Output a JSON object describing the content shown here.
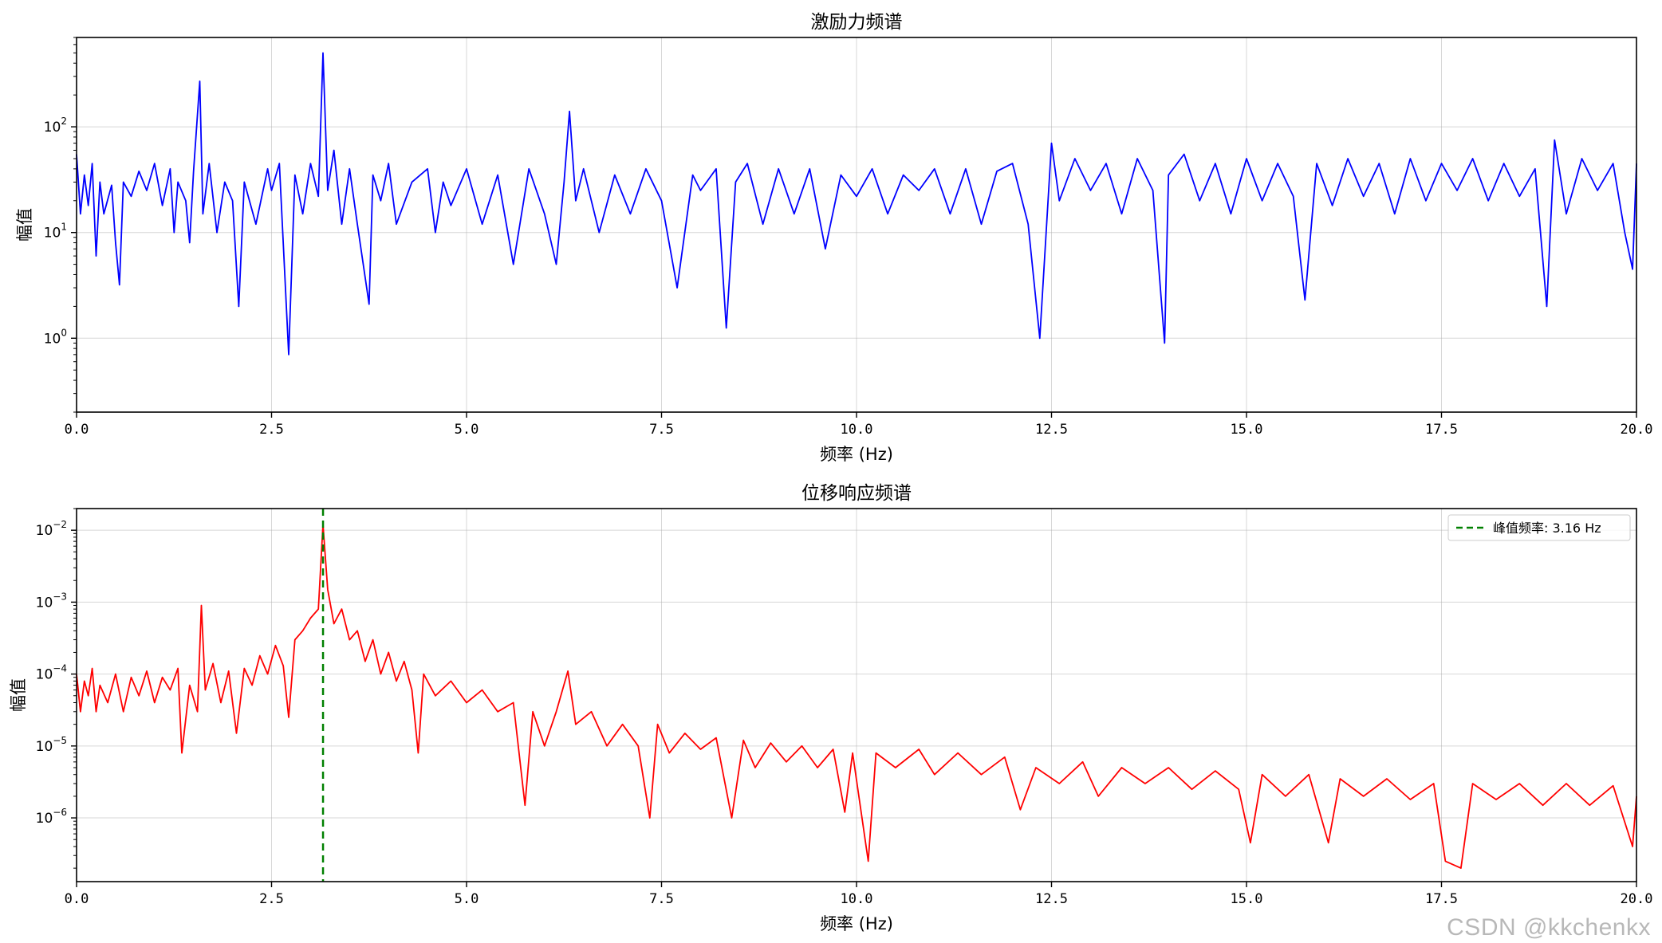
{
  "watermark": "CSDN @kkchenkx",
  "chart_data": [
    {
      "type": "line",
      "title": "激励力频谱",
      "xlabel": "频率 (Hz)",
      "ylabel": "幅值",
      "xlim": [
        0,
        20
      ],
      "ylim": [
        0.2,
        700
      ],
      "yscale": "log",
      "grid": true,
      "x_ticks": [
        "0.0",
        "2.5",
        "5.0",
        "7.5",
        "10.0",
        "12.5",
        "15.0",
        "17.5",
        "20.0"
      ],
      "y_ticks": [
        {
          "value": 1,
          "base": "10",
          "exp": "0"
        },
        {
          "value": 10,
          "base": "10",
          "exp": "1"
        },
        {
          "value": 100,
          "base": "10",
          "exp": "2"
        }
      ],
      "color": "#0000ff",
      "series": [
        {
          "name": "",
          "points": [
            [
              0,
              55
            ],
            [
              0.05,
              15
            ],
            [
              0.1,
              35
            ],
            [
              0.15,
              18
            ],
            [
              0.2,
              45
            ],
            [
              0.25,
              6
            ],
            [
              0.3,
              30
            ],
            [
              0.35,
              15
            ],
            [
              0.45,
              28
            ],
            [
              0.5,
              8
            ],
            [
              0.55,
              3.2
            ],
            [
              0.6,
              30
            ],
            [
              0.7,
              22
            ],
            [
              0.8,
              38
            ],
            [
              0.9,
              25
            ],
            [
              1.0,
              45
            ],
            [
              1.1,
              18
            ],
            [
              1.2,
              40
            ],
            [
              1.25,
              10
            ],
            [
              1.3,
              30
            ],
            [
              1.4,
              20
            ],
            [
              1.45,
              8
            ],
            [
              1.5,
              38
            ],
            [
              1.58,
              270
            ],
            [
              1.62,
              15
            ],
            [
              1.7,
              45
            ],
            [
              1.8,
              10
            ],
            [
              1.9,
              30
            ],
            [
              2.0,
              20
            ],
            [
              2.08,
              2.0
            ],
            [
              2.15,
              30
            ],
            [
              2.3,
              12
            ],
            [
              2.45,
              40
            ],
            [
              2.5,
              25
            ],
            [
              2.6,
              45
            ],
            [
              2.72,
              0.7
            ],
            [
              2.8,
              35
            ],
            [
              2.9,
              15
            ],
            [
              3.0,
              45
            ],
            [
              3.1,
              22
            ],
            [
              3.16,
              500
            ],
            [
              3.22,
              25
            ],
            [
              3.3,
              60
            ],
            [
              3.4,
              12
            ],
            [
              3.5,
              40
            ],
            [
              3.6,
              12
            ],
            [
              3.75,
              2.1
            ],
            [
              3.8,
              35
            ],
            [
              3.9,
              20
            ],
            [
              4.0,
              45
            ],
            [
              4.1,
              12
            ],
            [
              4.3,
              30
            ],
            [
              4.5,
              40
            ],
            [
              4.6,
              10
            ],
            [
              4.7,
              30
            ],
            [
              4.8,
              18
            ],
            [
              5.0,
              40
            ],
            [
              5.2,
              12
            ],
            [
              5.4,
              35
            ],
            [
              5.6,
              5
            ],
            [
              5.8,
              40
            ],
            [
              6.0,
              15
            ],
            [
              6.15,
              5
            ],
            [
              6.25,
              30
            ],
            [
              6.32,
              140
            ],
            [
              6.4,
              20
            ],
            [
              6.5,
              40
            ],
            [
              6.7,
              10
            ],
            [
              6.9,
              35
            ],
            [
              7.1,
              15
            ],
            [
              7.3,
              40
            ],
            [
              7.5,
              20
            ],
            [
              7.7,
              3.0
            ],
            [
              7.9,
              35
            ],
            [
              8.0,
              25
            ],
            [
              8.2,
              40
            ],
            [
              8.33,
              1.25
            ],
            [
              8.45,
              30
            ],
            [
              8.6,
              45
            ],
            [
              8.8,
              12
            ],
            [
              9.0,
              40
            ],
            [
              9.2,
              15
            ],
            [
              9.4,
              40
            ],
            [
              9.6,
              7
            ],
            [
              9.8,
              35
            ],
            [
              10.0,
              22
            ],
            [
              10.2,
              40
            ],
            [
              10.4,
              15
            ],
            [
              10.6,
              35
            ],
            [
              10.8,
              25
            ],
            [
              11.0,
              40
            ],
            [
              11.2,
              15
            ],
            [
              11.4,
              40
            ],
            [
              11.6,
              12
            ],
            [
              11.8,
              38
            ],
            [
              12.0,
              45
            ],
            [
              12.2,
              12
            ],
            [
              12.35,
              1.0
            ],
            [
              12.5,
              70
            ],
            [
              12.6,
              20
            ],
            [
              12.8,
              50
            ],
            [
              13.0,
              25
            ],
            [
              13.2,
              45
            ],
            [
              13.4,
              15
            ],
            [
              13.6,
              50
            ],
            [
              13.8,
              25
            ],
            [
              13.95,
              0.9
            ],
            [
              14.0,
              35
            ],
            [
              14.2,
              55
            ],
            [
              14.4,
              20
            ],
            [
              14.6,
              45
            ],
            [
              14.8,
              15
            ],
            [
              15.0,
              50
            ],
            [
              15.2,
              20
            ],
            [
              15.4,
              45
            ],
            [
              15.6,
              22
            ],
            [
              15.75,
              2.3
            ],
            [
              15.9,
              45
            ],
            [
              16.1,
              18
            ],
            [
              16.3,
              50
            ],
            [
              16.5,
              22
            ],
            [
              16.7,
              45
            ],
            [
              16.9,
              15
            ],
            [
              17.1,
              50
            ],
            [
              17.3,
              20
            ],
            [
              17.5,
              45
            ],
            [
              17.7,
              25
            ],
            [
              17.9,
              50
            ],
            [
              18.1,
              20
            ],
            [
              18.3,
              45
            ],
            [
              18.5,
              22
            ],
            [
              18.7,
              40
            ],
            [
              18.85,
              2.0
            ],
            [
              18.95,
              75
            ],
            [
              19.1,
              15
            ],
            [
              19.3,
              50
            ],
            [
              19.5,
              25
            ],
            [
              19.7,
              45
            ],
            [
              19.85,
              10
            ],
            [
              19.95,
              4.5
            ],
            [
              20.0,
              45
            ]
          ]
        }
      ]
    },
    {
      "type": "line",
      "title": "位移响应频谱",
      "xlabel": "频率 (Hz)",
      "ylabel": "幅值",
      "xlim": [
        0,
        20
      ],
      "ylim": [
        1.3e-07,
        0.02
      ],
      "yscale": "log",
      "grid": true,
      "x_ticks": [
        "0.0",
        "2.5",
        "5.0",
        "7.5",
        "10.0",
        "12.5",
        "15.0",
        "17.5",
        "20.0"
      ],
      "y_ticks": [
        {
          "value": 1e-06,
          "base": "10",
          "exp": "−6"
        },
        {
          "value": 1e-05,
          "base": "10",
          "exp": "−5"
        },
        {
          "value": 0.0001,
          "base": "10",
          "exp": "−4"
        },
        {
          "value": 0.001,
          "base": "10",
          "exp": "−3"
        },
        {
          "value": 0.01,
          "base": "10",
          "exp": "−2"
        }
      ],
      "color": "#ff0000",
      "series": [
        {
          "name": "",
          "points": [
            [
              0,
              0.0001
            ],
            [
              0.05,
              3e-05
            ],
            [
              0.1,
              8e-05
            ],
            [
              0.15,
              5e-05
            ],
            [
              0.2,
              0.00012
            ],
            [
              0.25,
              3e-05
            ],
            [
              0.3,
              7e-05
            ],
            [
              0.4,
              4e-05
            ],
            [
              0.5,
              0.0001
            ],
            [
              0.6,
              3e-05
            ],
            [
              0.7,
              9e-05
            ],
            [
              0.8,
              5e-05
            ],
            [
              0.9,
              0.00011
            ],
            [
              1.0,
              4e-05
            ],
            [
              1.1,
              9e-05
            ],
            [
              1.2,
              6e-05
            ],
            [
              1.3,
              0.00012
            ],
            [
              1.35,
              8e-06
            ],
            [
              1.45,
              7e-05
            ],
            [
              1.55,
              3e-05
            ],
            [
              1.6,
              0.0009
            ],
            [
              1.65,
              6e-05
            ],
            [
              1.75,
              0.00014
            ],
            [
              1.85,
              4e-05
            ],
            [
              1.95,
              0.00011
            ],
            [
              2.05,
              1.5e-05
            ],
            [
              2.15,
              0.00012
            ],
            [
              2.25,
              7e-05
            ],
            [
              2.35,
              0.00018
            ],
            [
              2.45,
              0.0001
            ],
            [
              2.55,
              0.00025
            ],
            [
              2.65,
              0.00013
            ],
            [
              2.72,
              2.5e-05
            ],
            [
              2.8,
              0.0003
            ],
            [
              2.9,
              0.0004
            ],
            [
              3.0,
              0.0006
            ],
            [
              3.1,
              0.0008
            ],
            [
              3.16,
              0.012
            ],
            [
              3.22,
              0.0015
            ],
            [
              3.3,
              0.0005
            ],
            [
              3.4,
              0.0008
            ],
            [
              3.5,
              0.0003
            ],
            [
              3.6,
              0.0004
            ],
            [
              3.7,
              0.00015
            ],
            [
              3.8,
              0.0003
            ],
            [
              3.9,
              0.0001
            ],
            [
              4.0,
              0.0002
            ],
            [
              4.1,
              8e-05
            ],
            [
              4.2,
              0.00015
            ],
            [
              4.3,
              6e-05
            ],
            [
              4.38,
              8e-06
            ],
            [
              4.45,
              0.0001
            ],
            [
              4.6,
              5e-05
            ],
            [
              4.8,
              8e-05
            ],
            [
              5.0,
              4e-05
            ],
            [
              5.2,
              6e-05
            ],
            [
              5.4,
              3e-05
            ],
            [
              5.6,
              4e-05
            ],
            [
              5.75,
              1.5e-06
            ],
            [
              5.85,
              3e-05
            ],
            [
              6.0,
              1e-05
            ],
            [
              6.15,
              3e-05
            ],
            [
              6.3,
              0.00011
            ],
            [
              6.4,
              2e-05
            ],
            [
              6.6,
              3e-05
            ],
            [
              6.8,
              1e-05
            ],
            [
              7.0,
              2e-05
            ],
            [
              7.2,
              1e-05
            ],
            [
              7.35,
              1e-06
            ],
            [
              7.45,
              2e-05
            ],
            [
              7.6,
              8e-06
            ],
            [
              7.8,
              1.5e-05
            ],
            [
              8.0,
              9e-06
            ],
            [
              8.2,
              1.3e-05
            ],
            [
              8.4,
              1e-06
            ],
            [
              8.55,
              1.2e-05
            ],
            [
              8.7,
              5e-06
            ],
            [
              8.9,
              1.1e-05
            ],
            [
              9.1,
              6e-06
            ],
            [
              9.3,
              1e-05
            ],
            [
              9.5,
              5e-06
            ],
            [
              9.7,
              9e-06
            ],
            [
              9.85,
              1.2e-06
            ],
            [
              9.95,
              8e-06
            ],
            [
              10.15,
              2.5e-07
            ],
            [
              10.25,
              8e-06
            ],
            [
              10.5,
              5e-06
            ],
            [
              10.8,
              9e-06
            ],
            [
              11.0,
              4e-06
            ],
            [
              11.3,
              8e-06
            ],
            [
              11.6,
              4e-06
            ],
            [
              11.9,
              7e-06
            ],
            [
              12.1,
              1.3e-06
            ],
            [
              12.3,
              5e-06
            ],
            [
              12.6,
              3e-06
            ],
            [
              12.9,
              6e-06
            ],
            [
              13.1,
              2e-06
            ],
            [
              13.4,
              5e-06
            ],
            [
              13.7,
              3e-06
            ],
            [
              14.0,
              5e-06
            ],
            [
              14.3,
              2.5e-06
            ],
            [
              14.6,
              4.5e-06
            ],
            [
              14.9,
              2.5e-06
            ],
            [
              15.05,
              4.5e-07
            ],
            [
              15.2,
              4e-06
            ],
            [
              15.5,
              2e-06
            ],
            [
              15.8,
              4e-06
            ],
            [
              16.05,
              4.5e-07
            ],
            [
              16.2,
              3.5e-06
            ],
            [
              16.5,
              2e-06
            ],
            [
              16.8,
              3.5e-06
            ],
            [
              17.1,
              1.8e-06
            ],
            [
              17.4,
              3e-06
            ],
            [
              17.55,
              2.5e-07
            ],
            [
              17.75,
              2e-07
            ],
            [
              17.9,
              3e-06
            ],
            [
              18.2,
              1.8e-06
            ],
            [
              18.5,
              3e-06
            ],
            [
              18.8,
              1.5e-06
            ],
            [
              19.1,
              3e-06
            ],
            [
              19.4,
              1.5e-06
            ],
            [
              19.7,
              2.8e-06
            ],
            [
              19.95,
              4e-07
            ],
            [
              20.0,
              2e-06
            ]
          ]
        }
      ],
      "reference_line": {
        "x": 3.16,
        "color": "#008000",
        "style": "dashed"
      },
      "legend": {
        "placement": "top-right",
        "label": "峰值频率: 3.16 Hz"
      }
    }
  ]
}
